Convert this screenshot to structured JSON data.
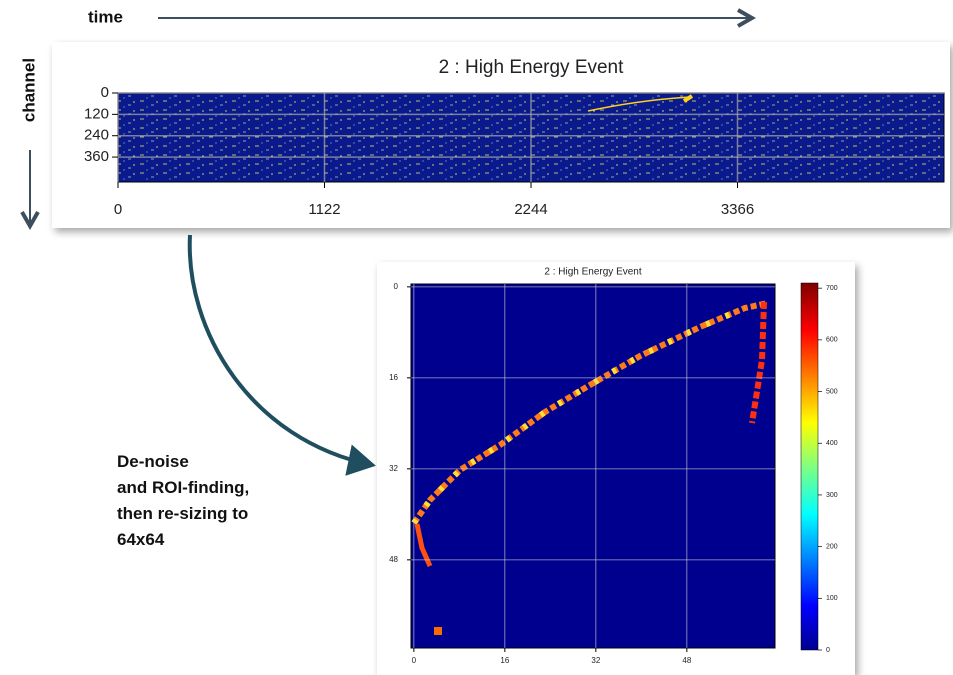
{
  "annotations": {
    "time": "time",
    "channel": "channel",
    "process": [
      "De-noise",
      "and ROI-finding,",
      "then re-sizing to",
      "64x64"
    ]
  },
  "top_chart": {
    "title": "2 : High Energy Event",
    "xlim": [
      0,
      4488
    ],
    "ylim": [
      0,
      500
    ],
    "xticks": [
      0,
      1122,
      2244,
      3366
    ],
    "yticks": [
      0,
      120,
      240,
      360
    ]
  },
  "bottom_chart": {
    "title": "2 : High Energy Event",
    "xlim": [
      -0.5,
      63.5
    ],
    "ylim": [
      -0.5,
      63.5
    ],
    "xticks": [
      0,
      16,
      32,
      48
    ],
    "yticks": [
      0,
      16,
      32,
      48
    ],
    "colorbar_lim": [
      0,
      710
    ],
    "colorbar_ticks": [
      0,
      100,
      200,
      300,
      400,
      500,
      600,
      700
    ]
  }
}
